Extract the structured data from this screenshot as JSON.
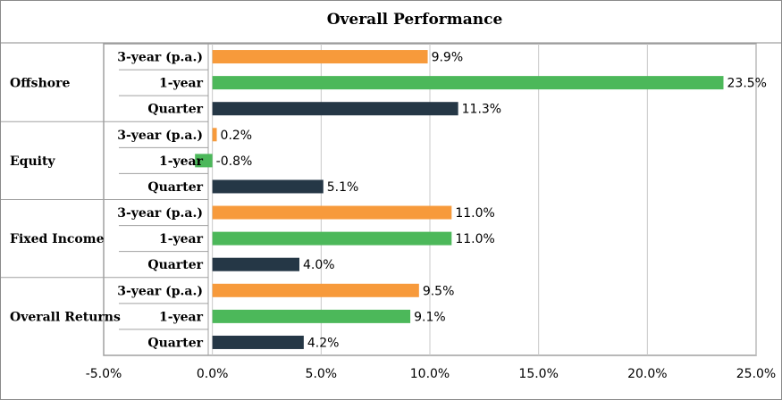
{
  "chart_data": {
    "type": "bar",
    "orientation": "horizontal",
    "title": "Overall Performance",
    "xlim": [
      -5.0,
      25.0
    ],
    "x_ticks": [
      -5.0,
      0.0,
      5.0,
      10.0,
      15.0,
      20.0,
      25.0
    ],
    "x_tick_labels": [
      "-5.0%",
      "0.0%",
      "5.0%",
      "10.0%",
      "15.0%",
      "20.0%",
      "25.0%"
    ],
    "grid": true,
    "value_suffix": "%",
    "groups": [
      {
        "name": "Offshore",
        "bars": [
          {
            "label": "3-year (p.a.)",
            "value": 9.9,
            "value_label": "9.9%"
          },
          {
            "label": "1-year",
            "value": 23.5,
            "value_label": "23.5%"
          },
          {
            "label": "Quarter",
            "value": 11.3,
            "value_label": "11.3%"
          }
        ]
      },
      {
        "name": "Equity",
        "bars": [
          {
            "label": "3-year (p.a.)",
            "value": 0.2,
            "value_label": "0.2%"
          },
          {
            "label": "1-year",
            "value": -0.8,
            "value_label": "-0.8%"
          },
          {
            "label": "Quarter",
            "value": 5.1,
            "value_label": "5.1%"
          }
        ]
      },
      {
        "name": "Fixed Income",
        "bars": [
          {
            "label": "3-year (p.a.)",
            "value": 11.0,
            "value_label": "11.0%"
          },
          {
            "label": "1-year",
            "value": 11.0,
            "value_label": "11.0%"
          },
          {
            "label": "Quarter",
            "value": 4.0,
            "value_label": "4.0%"
          }
        ]
      },
      {
        "name": "Overall Returns",
        "bars": [
          {
            "label": "3-year (p.a.)",
            "value": 9.5,
            "value_label": "9.5%"
          },
          {
            "label": "1-year",
            "value": 9.1,
            "value_label": "9.1%"
          },
          {
            "label": "Quarter",
            "value": 4.2,
            "value_label": "4.2%"
          }
        ]
      }
    ],
    "colors": {
      "3-year (p.a.)": "#f79a3b",
      "1-year": "#4cb85a",
      "Quarter": "#253746"
    },
    "gridline_color": "#c8c8c8",
    "plot_border_color": "#a0a0a0",
    "frame_color": "#8a8a8a"
  }
}
